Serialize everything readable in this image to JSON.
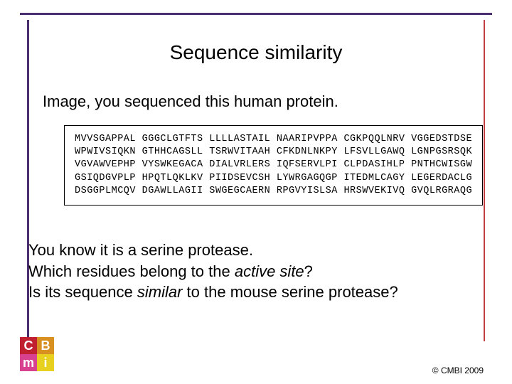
{
  "title": "Sequence similarity",
  "intro": "Image, you sequenced this human protein.",
  "sequence_lines": [
    "MVVSGAPPAL GGGCLGTFTS LLLLASTAIL NAARIPVPPA CGKPQQLNRV VGGEDSTDSE",
    "WPWIVSIQKN GTHHCAGSLL TSRWVITAAH CFKDNLNKPY LFSVLLGAWQ LGNPGSRSQK",
    "VGVAWVEPHP VYSWKEGACA DIALVRLERS IQFSERVLPI CLPDASIHLP PNTHCWISGW",
    "GSIQDGVPLP HPQTLQKLKV PIIDSEVCSH LYWRGAGQGP ITEDMLCAGY LEGERDACLG",
    "DSGGPLMCQV DGAWLLAGII SWGEGCAERN RPGVYISLSA HRSWVEKIVQ GVQLRGRAQG"
  ],
  "questions": {
    "line1": "You know it is a serine protease.",
    "line2_a": "Which residues belong to the ",
    "line2_ital": "active site",
    "line2_b": "?",
    "line3_a": "Is its sequence ",
    "line3_ital": "similar",
    "line3_b": " to the mouse serine protease?"
  },
  "logo": {
    "tl": {
      "letter": "C",
      "bg": "#c02030"
    },
    "tr": {
      "letter": "B",
      "bg": "#d89020"
    },
    "bl": {
      "letter": "m",
      "bg": "#d84090"
    },
    "br": {
      "letter": "i",
      "bg": "#e8d020"
    }
  },
  "copyright": "© CMBI 2009"
}
